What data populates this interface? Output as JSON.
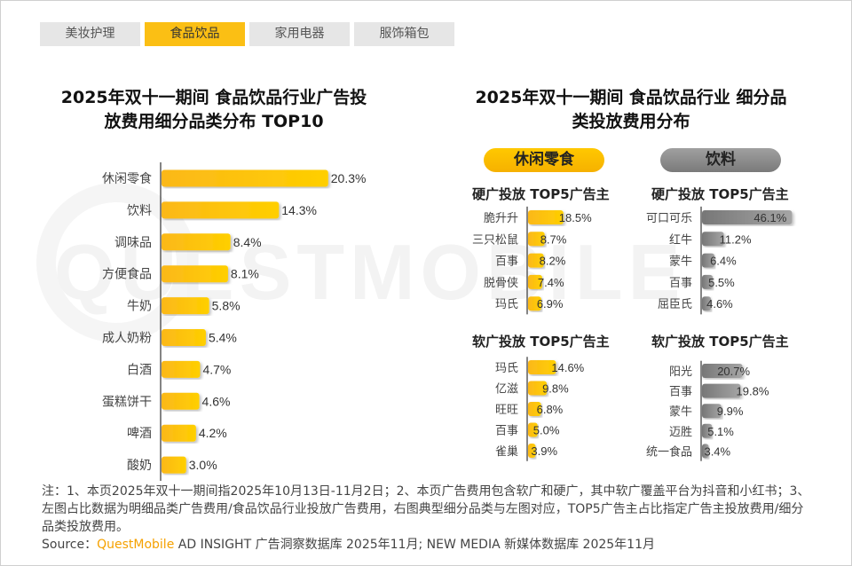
{
  "tabs": [
    {
      "label": "美妆护理",
      "active": false
    },
    {
      "label": "食品饮品",
      "active": true
    },
    {
      "label": "家用电器",
      "active": false
    },
    {
      "label": "服饰箱包",
      "active": false
    }
  ],
  "watermark": "QUESTMOBILE",
  "colors": {
    "accent": "#fbbf14",
    "gray": "#8a8a8a"
  },
  "chart_data": [
    {
      "type": "bar",
      "orientation": "horizontal",
      "title": "2025年双十一期间 食品饮品行业广告投放费用细分品类分布 TOP10",
      "categories": [
        "休闲零食",
        "饮料",
        "调味品",
        "方便食品",
        "牛奶",
        "成人奶粉",
        "白酒",
        "蛋糕饼干",
        "啤酒",
        "酸奶"
      ],
      "values": [
        20.3,
        14.3,
        8.4,
        8.1,
        5.8,
        5.4,
        4.7,
        4.6,
        4.2,
        3.0
      ],
      "labels": [
        "20.3%",
        "14.3%",
        "8.4%",
        "8.1%",
        "5.8%",
        "5.4%",
        "4.7%",
        "4.6%",
        "4.2%",
        "3.0%"
      ],
      "unit": "%"
    },
    {
      "type": "bar",
      "orientation": "horizontal",
      "title": "2025年双十一期间 食品饮品行业 细分品类投放费用分布",
      "group": "休闲零食",
      "subtitle": "硬广投放 TOP5广告主",
      "categories": [
        "脆升升",
        "三只松鼠",
        "百事",
        "脱骨侠",
        "玛氏"
      ],
      "values": [
        18.5,
        8.7,
        8.2,
        7.4,
        6.9
      ],
      "labels": [
        "18.5%",
        "8.7%",
        "8.2%",
        "7.4%",
        "6.9%"
      ]
    },
    {
      "type": "bar",
      "orientation": "horizontal",
      "group": "休闲零食",
      "subtitle": "软广投放 TOP5广告主",
      "categories": [
        "玛氏",
        "亿滋",
        "旺旺",
        "百事",
        "雀巢"
      ],
      "values": [
        14.6,
        9.8,
        6.8,
        5.0,
        3.9
      ],
      "labels": [
        "14.6%",
        "9.8%",
        "6.8%",
        "5.0%",
        "3.9%"
      ]
    },
    {
      "type": "bar",
      "orientation": "horizontal",
      "group": "饮料",
      "subtitle": "硬广投放 TOP5广告主",
      "categories": [
        "可口可乐",
        "红牛",
        "蒙牛",
        "百事",
        "屈臣氏"
      ],
      "values": [
        46.1,
        11.2,
        6.4,
        5.5,
        4.6
      ],
      "labels": [
        "46.1%",
        "11.2%",
        "6.4%",
        "5.5%",
        "4.6%"
      ]
    },
    {
      "type": "bar",
      "orientation": "horizontal",
      "group": "饮料",
      "subtitle": "软广投放 TOP5广告主",
      "categories": [
        "阳光",
        "百事",
        "蒙牛",
        "迈胜",
        "统一食品"
      ],
      "values": [
        20.7,
        19.8,
        9.9,
        5.1,
        3.4
      ],
      "labels": [
        "20.7%",
        "19.8%",
        "9.9%",
        "5.1%",
        "3.4%"
      ]
    }
  ],
  "left_title": {
    "line1": "2025年双十一期间 食品饮品行业广告投",
    "line2": "放费用细分品类分布 TOP10"
  },
  "right_title": {
    "line1": "2025年双十一期间 食品饮品行业 细分品",
    "line2": "类投放费用分布"
  },
  "pills": {
    "snack": "休闲零食",
    "drink": "饮料"
  },
  "subtitles": {
    "hard": "硬广投放 TOP5广告主",
    "soft": "软广投放 TOP5广告主"
  },
  "note": "注：1、本页2025年双十一期间指2025年10月13日-11月2日；2、本页广告费用包含软广和硬广，其中软广覆盖平台为抖音和小红书；3、左图占比数据为明细品类广告费用/食品饮品行业投放广告费用，右图典型细分品类与左图对应，TOP5广告主占比指定广告主投放费用/细分品类投放费用。",
  "source": {
    "prefix": "Source：",
    "brand": "QuestMobile",
    "rest": " AD INSIGHT 广告洞察数据库 2025年11月; NEW MEDIA 新媒体数据库 2025年11月"
  }
}
